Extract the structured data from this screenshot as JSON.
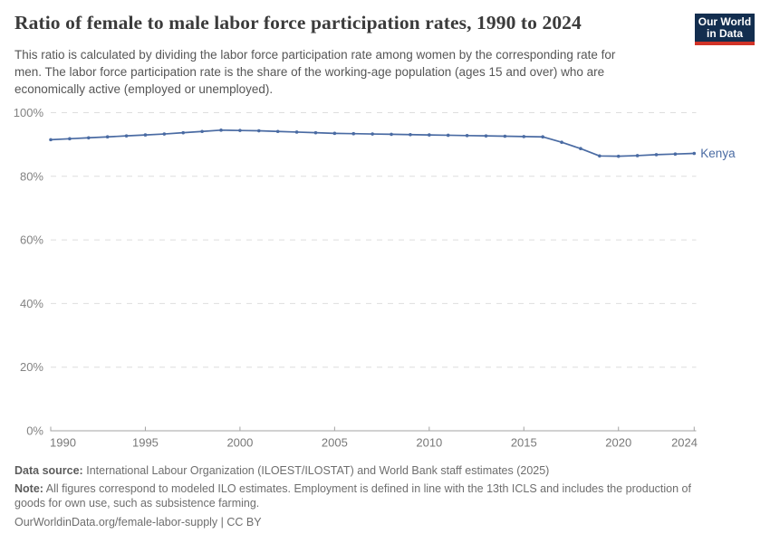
{
  "header": {
    "title": "Ratio of female to male labor force participation rates, 1990 to 2024",
    "subtitle_lines": [
      "This ratio is calculated by dividing the labor force participation rate among women by the corresponding rate for",
      "men. The labor force participation rate is the share of the working-age population (ages 15 and over) who are",
      "economically active (employed or unemployed)."
    ],
    "logo": {
      "line1": "Our World",
      "line2": "in Data",
      "bg_color": "#132e4f",
      "accent_color": "#d13328"
    }
  },
  "chart_data": {
    "type": "line",
    "title": "Ratio of female to male labor force participation rates, 1990 to 2024",
    "xlabel": "",
    "ylabel": "",
    "ylim": [
      0,
      100
    ],
    "yticks": [
      0,
      20,
      40,
      60,
      80,
      100
    ],
    "ytick_suffix": "%",
    "xticks": [
      1990,
      1995,
      2000,
      2005,
      2010,
      2015,
      2020,
      2024
    ],
    "grid": "horizontal-dashed",
    "legend": "end-of-line-label",
    "series": [
      {
        "name": "Kenya",
        "color": "#4a6ba3",
        "x": [
          1990,
          1991,
          1992,
          1993,
          1994,
          1995,
          1996,
          1997,
          1998,
          1999,
          2000,
          2001,
          2002,
          2003,
          2004,
          2005,
          2006,
          2007,
          2008,
          2009,
          2010,
          2011,
          2012,
          2013,
          2014,
          2015,
          2016,
          2017,
          2018,
          2019,
          2020,
          2021,
          2022,
          2023,
          2024
        ],
        "values": [
          91.5,
          91.8,
          92.1,
          92.4,
          92.7,
          93.0,
          93.3,
          93.7,
          94.1,
          94.5,
          94.4,
          94.3,
          94.1,
          93.9,
          93.7,
          93.5,
          93.4,
          93.3,
          93.2,
          93.1,
          93.0,
          92.9,
          92.8,
          92.7,
          92.6,
          92.5,
          92.4,
          90.7,
          88.7,
          86.4,
          86.3,
          86.5,
          86.8,
          87.0,
          87.2
        ]
      }
    ]
  },
  "footer": {
    "data_source_label": "Data source:",
    "data_source": "International Labour Organization (ILOEST/ILOSTAT) and World Bank staff estimates (2025)",
    "note_label": "Note:",
    "note_lines": [
      "All figures correspond to modeled ILO estimates. Employment is defined in line with the 13th ICLS and includes the production of",
      "goods for own use, such as subsistence farming."
    ],
    "url": "OurWorldinData.org/female-labor-supply",
    "separator": "|",
    "license": "CC BY"
  }
}
